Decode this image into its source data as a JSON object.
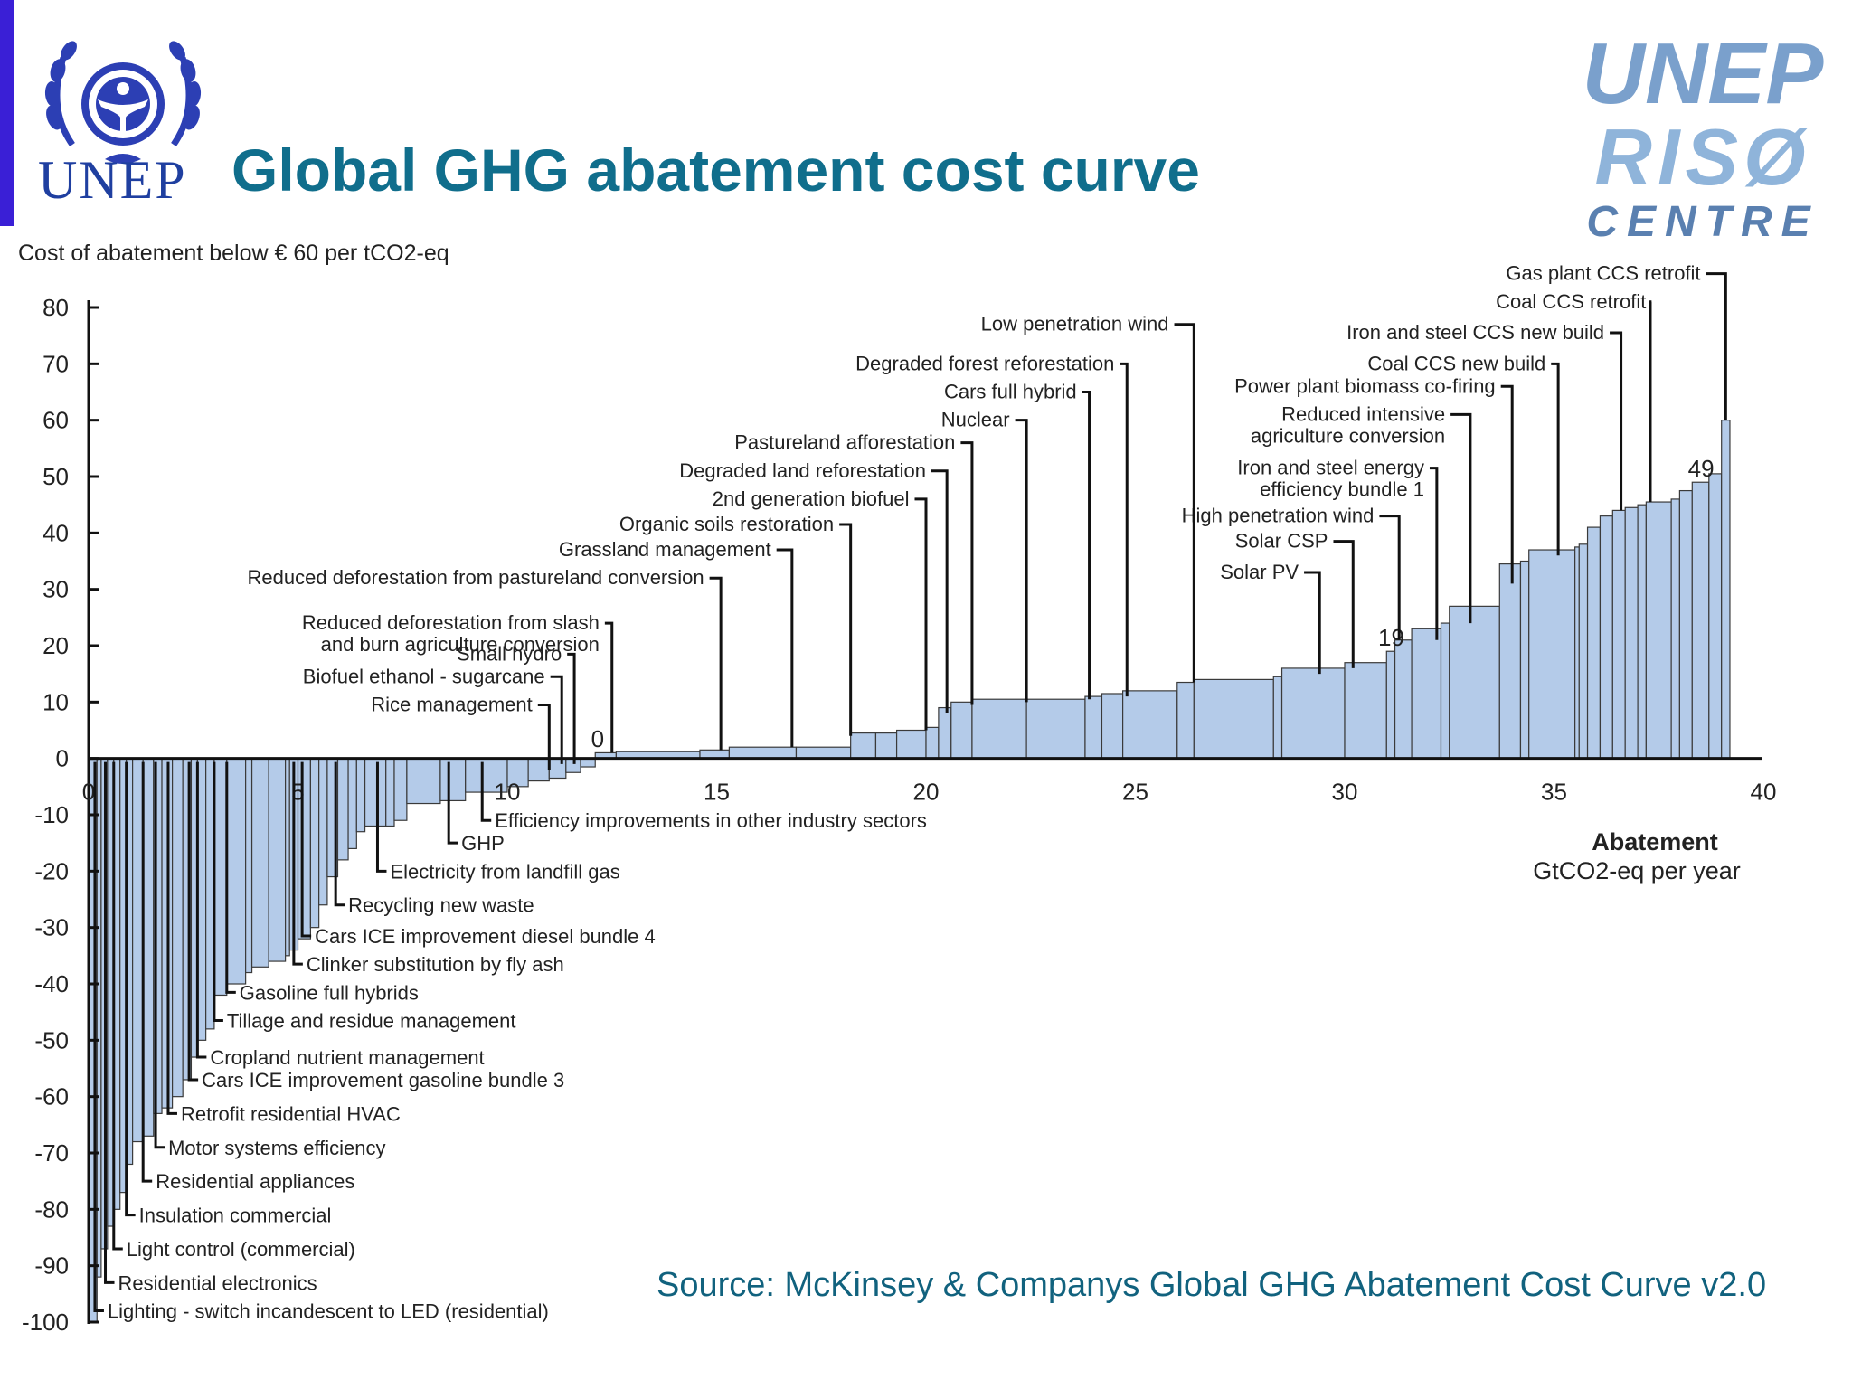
{
  "header": {
    "logo_text": "UNEP",
    "title": "Global GHG abatement cost curve",
    "partner_logo": {
      "line1": "UNEP",
      "line2": "RISØ",
      "line3": "CENTRE"
    }
  },
  "source": "Source: McKinsey & Companys Global GHG Abatement Cost Curve v2.0",
  "colors": {
    "bar": "#b4cbe9",
    "accent": "#106e8c",
    "logo": "#1f3fa0"
  },
  "chart_data": {
    "type": "bar",
    "ylabel": "Cost of abatement below € 60 per tCO2-eq",
    "xlabel_line1": "Abatement",
    "xlabel_line2": "GtCO2-eq per year",
    "xlim": [
      0,
      40
    ],
    "ylim": [
      -100,
      80
    ],
    "xticks": [
      "0",
      "5",
      "10",
      "15",
      "20",
      "25",
      "30",
      "35",
      "40"
    ],
    "yticks": [
      "80",
      "70",
      "60",
      "50",
      "40",
      "30",
      "20",
      "10",
      "0",
      "-10",
      "-20",
      "-30",
      "-40",
      "-50",
      "-60",
      "-70",
      "-80",
      "-90",
      "-100"
    ],
    "value_marks": [
      {
        "text": "0",
        "x": 12.0,
        "y": 2
      },
      {
        "text": "19",
        "x": 30.8,
        "y": 20
      },
      {
        "text": "49",
        "x": 38.2,
        "y": 50
      }
    ],
    "bars": [
      [
        0.0,
        0.2,
        -100
      ],
      [
        0.2,
        0.3,
        -92
      ],
      [
        0.3,
        0.45,
        -87
      ],
      [
        0.45,
        0.6,
        -83
      ],
      [
        0.6,
        0.75,
        -80
      ],
      [
        0.75,
        0.9,
        -77
      ],
      [
        0.9,
        1.05,
        -72
      ],
      [
        1.05,
        1.3,
        -68
      ],
      [
        1.3,
        1.55,
        -67
      ],
      [
        1.55,
        1.75,
        -63
      ],
      [
        1.75,
        2.0,
        -62
      ],
      [
        2.0,
        2.25,
        -60
      ],
      [
        2.25,
        2.45,
        -57
      ],
      [
        2.45,
        2.6,
        -53
      ],
      [
        2.6,
        2.8,
        -50
      ],
      [
        2.8,
        3.0,
        -48
      ],
      [
        3.0,
        3.3,
        -42
      ],
      [
        3.3,
        3.75,
        -40
      ],
      [
        3.75,
        3.9,
        -38
      ],
      [
        3.9,
        4.3,
        -37
      ],
      [
        4.3,
        4.7,
        -36
      ],
      [
        4.7,
        4.8,
        -35
      ],
      [
        4.8,
        5.0,
        -34
      ],
      [
        5.0,
        5.3,
        -32
      ],
      [
        5.3,
        5.5,
        -30
      ],
      [
        5.5,
        5.7,
        -26
      ],
      [
        5.7,
        5.95,
        -21
      ],
      [
        5.95,
        6.2,
        -18
      ],
      [
        6.2,
        6.4,
        -16
      ],
      [
        6.4,
        6.6,
        -13
      ],
      [
        6.6,
        7.1,
        -12
      ],
      [
        7.1,
        7.3,
        -12
      ],
      [
        7.3,
        7.6,
        -11
      ],
      [
        7.6,
        8.4,
        -8
      ],
      [
        8.4,
        9.0,
        -7.5
      ],
      [
        9.0,
        10.0,
        -6
      ],
      [
        10.0,
        10.5,
        -5
      ],
      [
        10.5,
        11.0,
        -4
      ],
      [
        11.0,
        11.4,
        -3.5
      ],
      [
        11.4,
        11.75,
        -2.5
      ],
      [
        11.75,
        12.1,
        -1.5
      ],
      [
        12.1,
        12.6,
        1
      ],
      [
        12.6,
        14.6,
        1.2
      ],
      [
        14.6,
        15.3,
        1.5
      ],
      [
        15.3,
        16.9,
        2
      ],
      [
        16.9,
        18.2,
        2
      ],
      [
        18.2,
        18.8,
        4.5
      ],
      [
        18.8,
        19.3,
        4.5
      ],
      [
        19.3,
        20.0,
        5
      ],
      [
        20.0,
        20.3,
        5.5
      ],
      [
        20.3,
        20.6,
        9
      ],
      [
        20.6,
        21.1,
        10
      ],
      [
        21.1,
        22.4,
        10.5
      ],
      [
        22.4,
        23.8,
        10.5
      ],
      [
        23.8,
        24.2,
        11
      ],
      [
        24.2,
        24.7,
        11.5
      ],
      [
        24.7,
        26.0,
        12
      ],
      [
        26.0,
        26.4,
        13.5
      ],
      [
        26.4,
        28.3,
        14
      ],
      [
        28.3,
        28.5,
        14.5
      ],
      [
        28.5,
        30.0,
        16
      ],
      [
        30.0,
        31.0,
        17
      ],
      [
        31.0,
        31.2,
        19
      ],
      [
        31.2,
        31.6,
        21
      ],
      [
        31.6,
        32.3,
        23
      ],
      [
        32.3,
        32.5,
        24
      ],
      [
        32.5,
        33.7,
        27
      ],
      [
        33.7,
        34.2,
        34.5
      ],
      [
        34.2,
        34.4,
        35
      ],
      [
        34.4,
        35.5,
        37
      ],
      [
        35.5,
        35.6,
        37.5
      ],
      [
        35.6,
        35.8,
        38
      ],
      [
        35.8,
        36.1,
        41
      ],
      [
        36.1,
        36.4,
        43
      ],
      [
        36.4,
        36.7,
        44
      ],
      [
        36.7,
        37.0,
        44.5
      ],
      [
        37.0,
        37.2,
        45
      ],
      [
        37.2,
        37.8,
        45.5
      ],
      [
        37.8,
        38.0,
        46
      ],
      [
        38.0,
        38.3,
        47.5
      ],
      [
        38.3,
        38.7,
        49
      ],
      [
        38.7,
        39.0,
        50.5
      ],
      [
        39.0,
        39.2,
        60
      ]
    ],
    "annotations_above": [
      {
        "text": "Gas plant CCS retrofit",
        "x": 39.1,
        "line_y": 86,
        "label_x": 38.5,
        "tip_y": 60
      },
      {
        "text": "Coal CCS retrofit",
        "x": 37.3,
        "line_y": 81,
        "label_x": 37.2,
        "tip_y": 45.5
      },
      {
        "text": "Iron and steel CCS new build",
        "x": 36.6,
        "line_y": 75.5,
        "label_x": 36.2,
        "tip_y": 44
      },
      {
        "text": "Coal CCS new build",
        "x": 35.1,
        "line_y": 70,
        "label_x": 34.8,
        "tip_y": 36
      },
      {
        "text": "Power plant biomass co-firing",
        "x": 34.0,
        "line_y": 66,
        "label_x": 33.6,
        "tip_y": 31
      },
      {
        "text": "Reduced intensive",
        "text2": "agriculture conversion",
        "x": 33.0,
        "line_y": 61,
        "label_x": 32.4,
        "tip_y": 24
      },
      {
        "text": "Iron and steel energy",
        "text2": "efficiency bundle 1",
        "x": 32.2,
        "line_y": 51.5,
        "label_x": 31.9,
        "tip_y": 21
      },
      {
        "text": "High penetration wind",
        "x": 31.3,
        "line_y": 43,
        "label_x": 30.7,
        "tip_y": 21
      },
      {
        "text": "Solar CSP",
        "x": 30.2,
        "line_y": 38.5,
        "label_x": 29.6,
        "tip_y": 16
      },
      {
        "text": "Solar PV",
        "x": 29.4,
        "line_y": 33,
        "label_x": 28.9,
        "tip_y": 15
      },
      {
        "text": "Low penetration wind",
        "x": 26.4,
        "line_y": 77,
        "label_x": 25.8,
        "tip_y": 13.5
      },
      {
        "text": "Degraded forest reforestation",
        "x": 24.8,
        "line_y": 70,
        "label_x": 24.5,
        "tip_y": 11
      },
      {
        "text": "Cars full hybrid",
        "x": 23.9,
        "line_y": 65,
        "label_x": 23.6,
        "tip_y": 10.5
      },
      {
        "text": "Nuclear",
        "x": 22.4,
        "line_y": 60,
        "label_x": 22.0,
        "tip_y": 10
      },
      {
        "text": "Pastureland afforestation",
        "x": 21.1,
        "line_y": 56,
        "label_x": 20.7,
        "tip_y": 9.5
      },
      {
        "text": "Degraded land reforestation",
        "x": 20.5,
        "line_y": 51,
        "label_x": 20.0,
        "tip_y": 8
      },
      {
        "text": "2nd generation biofuel",
        "x": 20.0,
        "line_y": 46,
        "label_x": 19.6,
        "tip_y": 5
      },
      {
        "text": "Organic soils restoration",
        "x": 18.2,
        "line_y": 41.5,
        "label_x": 17.8,
        "tip_y": 4
      },
      {
        "text": "Grassland management",
        "x": 16.8,
        "line_y": 37,
        "label_x": 16.3,
        "tip_y": 2
      },
      {
        "text": "Reduced deforestation from pastureland conversion",
        "x": 15.1,
        "line_y": 32,
        "label_x": 14.7,
        "tip_y": 1.5
      },
      {
        "text": "Reduced deforestation from slash",
        "text2": "and burn agriculture conversion",
        "x": 12.5,
        "line_y": 24,
        "label_x": 12.2,
        "tip_y": 1
      },
      {
        "text": "Small hydro",
        "x": 11.6,
        "line_y": 18.5,
        "label_x": 11.3,
        "tip_y": -1
      },
      {
        "text": "Biofuel ethanol - sugarcane",
        "x": 11.3,
        "line_y": 14.5,
        "label_x": 10.9,
        "tip_y": -1
      },
      {
        "text": "Rice management",
        "x": 11.0,
        "line_y": 9.5,
        "label_x": 10.6,
        "tip_y": -2
      }
    ],
    "annotations_below": [
      {
        "text": "Efficiency improvements in other industry sectors",
        "x": 9.4,
        "label_y": -11
      },
      {
        "text": "GHP",
        "x": 8.6,
        "label_y": -15
      },
      {
        "text": "Electricity from landfill gas",
        "x": 6.9,
        "label_y": -20
      },
      {
        "text": "Recycling new waste",
        "x": 5.9,
        "label_y": -26
      },
      {
        "text": "Cars ICE improvement diesel bundle 4",
        "x": 5.1,
        "label_y": -31.5
      },
      {
        "text": "Clinker substitution by fly ash",
        "x": 4.9,
        "label_y": -36.5
      },
      {
        "text": "Gasoline full hybrids",
        "x": 3.3,
        "label_y": -41.5
      },
      {
        "text": "Tillage and residue management",
        "x": 3.0,
        "label_y": -46.5
      },
      {
        "text": "Cropland nutrient management",
        "x": 2.6,
        "label_y": -53
      },
      {
        "text": "Cars ICE improvement gasoline bundle 3",
        "x": 2.4,
        "label_y": -57
      },
      {
        "text": "Retrofit residential HVAC",
        "x": 1.9,
        "label_y": -63
      },
      {
        "text": "Motor systems efficiency",
        "x": 1.6,
        "label_y": -69
      },
      {
        "text": "Residential appliances",
        "x": 1.3,
        "label_y": -75
      },
      {
        "text": "Insulation commercial",
        "x": 0.9,
        "label_y": -81
      },
      {
        "text": "Light control (commercial)",
        "x": 0.6,
        "label_y": -87
      },
      {
        "text": "Residential electronics",
        "x": 0.4,
        "label_y": -93
      },
      {
        "text": "Lighting - switch incandescent to LED (residential)",
        "x": 0.15,
        "label_y": -98
      }
    ]
  }
}
